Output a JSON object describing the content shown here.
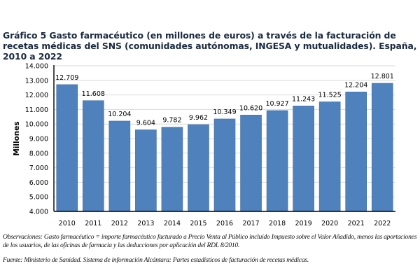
{
  "chart_data": {
    "type": "bar",
    "title": "Gráfico 5 Gasto farmacéutico (en millones de euros) a través de la facturación de recetas médicas del SNS (comunidades autónomas, INGESA y mutualidades). España, 2010 a 2022",
    "xlabel": "",
    "ylabel": "Millones",
    "categories": [
      "2010",
      "2011",
      "2012",
      "2013",
      "2014",
      "2015",
      "2016",
      "2017",
      "2018",
      "2019",
      "2020",
      "2021",
      "2022"
    ],
    "values": [
      12709,
      11608,
      10204,
      9604,
      9782,
      9962,
      10349,
      10620,
      10927,
      11243,
      11525,
      12204,
      12801
    ],
    "value_labels": [
      "12.709",
      "11.608",
      "10.204",
      "9.604",
      "9.782",
      "9.962",
      "10.349",
      "10.620",
      "10.927",
      "11.243",
      "11.525",
      "12.204",
      "12.801"
    ],
    "ylim": [
      4000,
      14000
    ],
    "yticks": [
      4000,
      5000,
      6000,
      7000,
      8000,
      9000,
      10000,
      11000,
      12000,
      13000,
      14000
    ],
    "ytick_labels": [
      "4.000",
      "5.000",
      "6.000",
      "7.000",
      "8.000",
      "9.000",
      "10.000",
      "11.000",
      "12.000",
      "13.000",
      "14.000"
    ],
    "grid": true,
    "legend": "none",
    "bar_color": "#4f81bd"
  },
  "notes": {
    "observaciones": "Observaciones: Gasto farmacéutico = importe farmacéutico facturado a Precio Venta al Público incluido Impuesto sobre el Valor Añadido, menos las aportaciones de los usuarios, de las oficinas de farmacia y las deducciones por aplicación del RDL 8/2010.",
    "fuente": "Fuente: Ministerio de Sanidad. Sistema de información Alcántara: Partes estadísticos de facturación de recetas médicas."
  }
}
